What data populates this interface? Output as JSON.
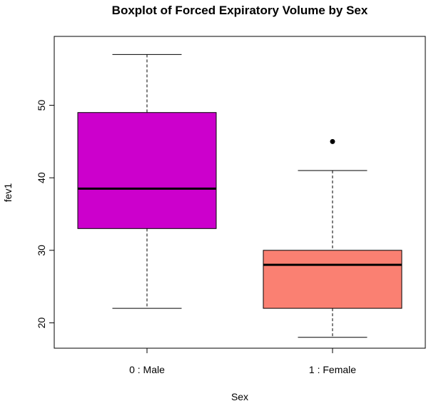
{
  "chart_data": {
    "type": "boxplot",
    "title": "Boxplot of Forced Expiratory Volume by Sex",
    "xlabel": "Sex",
    "ylabel": "fev1",
    "ylim": [
      16.5,
      59.5
    ],
    "yticks": [
      20,
      30,
      40,
      50
    ],
    "grid": false,
    "legend": "none",
    "categories": [
      "0 : Male",
      "1 : Female"
    ],
    "boxes": [
      {
        "category": "0 : Male",
        "whisker_low": 22,
        "q1": 33,
        "median": 38.5,
        "q3": 49,
        "whisker_high": 57,
        "outliers": [],
        "color": "#CC00CC"
      },
      {
        "category": "1 : Female",
        "whisker_low": 18,
        "q1": 22,
        "median": 28,
        "q3": 30,
        "whisker_high": 41,
        "outliers": [
          45
        ],
        "color": "#FA8072"
      }
    ]
  }
}
